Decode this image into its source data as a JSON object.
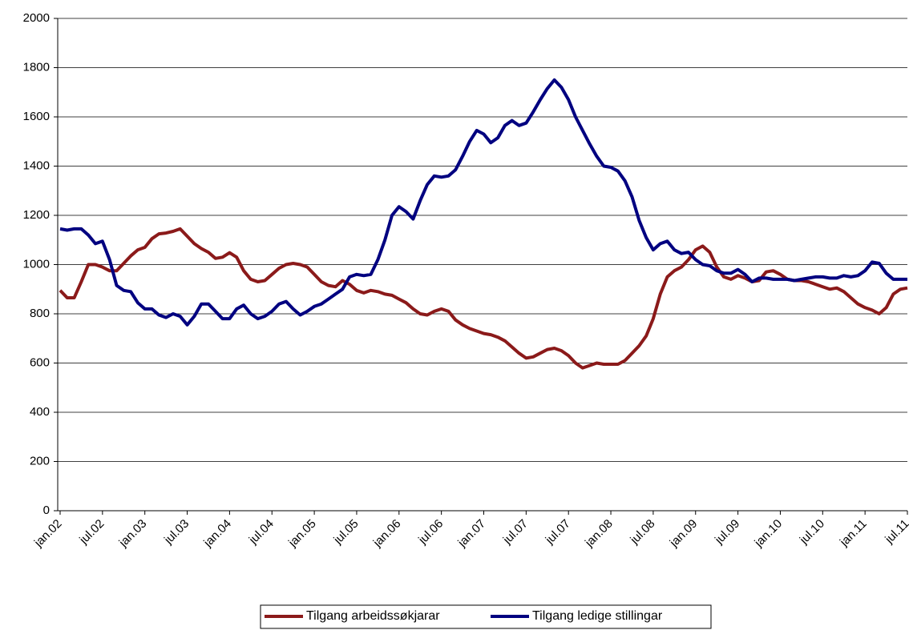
{
  "chart_data": {
    "type": "line",
    "categories": [
      "jan.02",
      null,
      null,
      null,
      null,
      null,
      "jul.02",
      null,
      null,
      null,
      null,
      null,
      "jan.03",
      null,
      null,
      null,
      null,
      null,
      "jul.03",
      null,
      null,
      null,
      null,
      null,
      "jan.04",
      null,
      null,
      null,
      null,
      null,
      "jul.04",
      null,
      null,
      null,
      null,
      null,
      "jan.05",
      null,
      null,
      null,
      null,
      null,
      "jul.05",
      null,
      null,
      null,
      null,
      null,
      "jan.06",
      null,
      null,
      null,
      null,
      null,
      "jul.06",
      null,
      null,
      null,
      null,
      null,
      "jan.07",
      null,
      null,
      null,
      null,
      null,
      "jul.07",
      null,
      null,
      null,
      null,
      null,
      "jul.07",
      null,
      null,
      null,
      null,
      null,
      "jan.08",
      null,
      null,
      null,
      null,
      null,
      "jul.08",
      null,
      null,
      null,
      null,
      null,
      "jan.09",
      null,
      null,
      null,
      null,
      null,
      "jul.09",
      null,
      null,
      null,
      null,
      null,
      "jan.10",
      null,
      null,
      null,
      null,
      null,
      "jul.10",
      null,
      null,
      null,
      null,
      null,
      "jan.11",
      null,
      null,
      null,
      null,
      null,
      "jul.11"
    ],
    "series": [
      {
        "name": "Tilgang arbeidssøkjarar",
        "color": "#8b1a1a",
        "values": [
          895,
          865,
          865,
          930,
          1000,
          1000,
          990,
          975,
          975,
          1005,
          1035,
          1060,
          1070,
          1105,
          1125,
          1128,
          1135,
          1145,
          1115,
          1085,
          1065,
          1050,
          1025,
          1030,
          1048,
          1030,
          975,
          940,
          930,
          935,
          960,
          985,
          1000,
          1005,
          1000,
          990,
          960,
          930,
          915,
          910,
          935,
          920,
          895,
          885,
          895,
          890,
          880,
          875,
          860,
          845,
          820,
          800,
          795,
          810,
          820,
          810,
          775,
          755,
          740,
          730,
          720,
          715,
          705,
          690,
          665,
          640,
          620,
          625,
          640,
          655,
          660,
          650,
          630,
          600,
          580,
          590,
          600,
          595,
          595,
          595,
          610,
          640,
          670,
          710,
          780,
          880,
          950,
          975,
          990,
          1020,
          1060,
          1075,
          1050,
          990,
          950,
          940,
          955,
          945,
          930,
          935,
          970,
          975,
          960,
          940,
          935,
          935,
          930,
          920,
          910,
          900,
          905,
          890,
          865,
          840,
          825,
          815,
          800,
          825,
          880,
          900,
          905
        ]
      },
      {
        "name": "Tilgang ledige stillingar",
        "color": "#000080",
        "values": [
          1145,
          1140,
          1145,
          1145,
          1120,
          1085,
          1095,
          1020,
          915,
          895,
          890,
          845,
          820,
          820,
          795,
          785,
          800,
          790,
          755,
          790,
          840,
          840,
          810,
          780,
          780,
          820,
          835,
          800,
          780,
          790,
          810,
          840,
          850,
          820,
          795,
          810,
          830,
          840,
          860,
          880,
          900,
          950,
          960,
          955,
          960,
          1020,
          1100,
          1200,
          1235,
          1215,
          1185,
          1260,
          1325,
          1360,
          1355,
          1360,
          1385,
          1440,
          1500,
          1545,
          1530,
          1495,
          1515,
          1565,
          1585,
          1565,
          1575,
          1620,
          1670,
          1715,
          1750,
          1720,
          1670,
          1600,
          1545,
          1490,
          1440,
          1400,
          1395,
          1380,
          1340,
          1275,
          1180,
          1110,
          1060,
          1085,
          1095,
          1060,
          1045,
          1050,
          1020,
          1000,
          995,
          975,
          965,
          965,
          980,
          960,
          930,
          945,
          945,
          940,
          940,
          940,
          935,
          940,
          945,
          950,
          950,
          945,
          945,
          955,
          950,
          955,
          975,
          1010,
          1005,
          965,
          940,
          940,
          940
        ]
      }
    ],
    "ylim": [
      0,
      2000
    ],
    "yticks": [
      0,
      200,
      400,
      600,
      800,
      1000,
      1200,
      1400,
      1600,
      1800,
      2000
    ],
    "grid": true
  }
}
